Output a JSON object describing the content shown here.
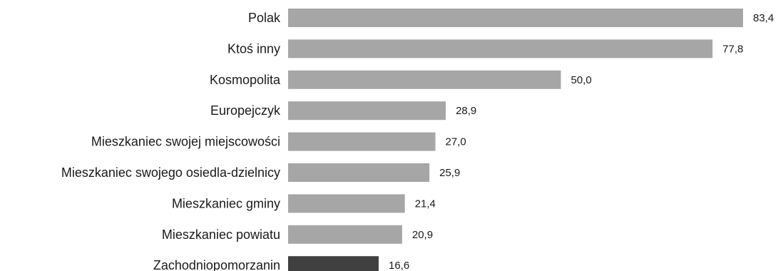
{
  "chart_data": {
    "type": "bar",
    "orientation": "horizontal",
    "categories": [
      "Polak",
      "Ktoś inny",
      "Kosmopolita",
      "Europejczyk",
      "Mieszkaniec swojej miejscowości",
      "Mieszkaniec swojego osiedla-dzielnicy",
      "Mieszkaniec gminy",
      "Mieszkaniec powiatu",
      "Zachodniopomorzanin"
    ],
    "values": [
      83.4,
      77.8,
      50.0,
      28.9,
      27.0,
      25.9,
      21.4,
      20.9,
      16.6
    ],
    "value_labels": [
      "83,4",
      "77,8",
      "50,0",
      "28,9",
      "27,0",
      "25,9",
      "21,4",
      "20,9",
      "16,6"
    ],
    "xlim": [
      0,
      83.4
    ],
    "grid": false,
    "legend": "none",
    "colors": {
      "default_bar": "#a6a6a6",
      "highlight_bar": "#404040",
      "highlight_category": "Zachodniopomorzanin"
    }
  }
}
